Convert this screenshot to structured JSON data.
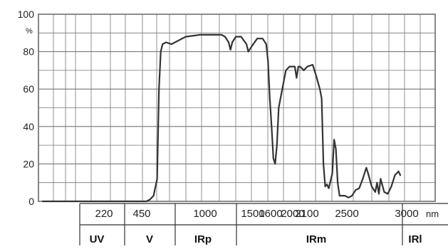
{
  "chart_data": {
    "type": "line",
    "y_unit": "%",
    "x_unit": "nm",
    "ylim": [
      0,
      100
    ],
    "y_ticks": [
      "0",
      "20",
      "40",
      "60",
      "80",
      "100"
    ],
    "x_ticks": [
      "220",
      "450",
      "1000",
      "1500",
      "1600",
      "2000",
      "2100",
      "2500",
      "3000"
    ],
    "bands": [
      "UV",
      "V",
      "IRp",
      "IRm",
      "IRl"
    ],
    "grid": true,
    "series": [
      {
        "values": [
          [
            0.0,
            0
          ],
          [
            0.1,
            0
          ],
          [
            0.2,
            0
          ],
          [
            0.29,
            0
          ],
          [
            0.3,
            1
          ],
          [
            0.31,
            3
          ],
          [
            0.32,
            12
          ],
          [
            0.325,
            60
          ],
          [
            0.33,
            80
          ],
          [
            0.335,
            84
          ],
          [
            0.345,
            85
          ],
          [
            0.36,
            84
          ],
          [
            0.38,
            86
          ],
          [
            0.4,
            88
          ],
          [
            0.44,
            89
          ],
          [
            0.48,
            89
          ],
          [
            0.5,
            89
          ],
          [
            0.51,
            88
          ],
          [
            0.52,
            85
          ],
          [
            0.525,
            81
          ],
          [
            0.53,
            85
          ],
          [
            0.54,
            88
          ],
          [
            0.555,
            88
          ],
          [
            0.57,
            84
          ],
          [
            0.575,
            80
          ],
          [
            0.585,
            83
          ],
          [
            0.6,
            87
          ],
          [
            0.615,
            87
          ],
          [
            0.625,
            84
          ],
          [
            0.63,
            75
          ],
          [
            0.635,
            55
          ],
          [
            0.64,
            40
          ],
          [
            0.645,
            23
          ],
          [
            0.65,
            20
          ],
          [
            0.655,
            30
          ],
          [
            0.66,
            50
          ],
          [
            0.665,
            55
          ],
          [
            0.67,
            60
          ],
          [
            0.68,
            70
          ],
          [
            0.69,
            72
          ],
          [
            0.705,
            72
          ],
          [
            0.71,
            66
          ],
          [
            0.715,
            72
          ],
          [
            0.72,
            72
          ],
          [
            0.73,
            70
          ],
          [
            0.74,
            72
          ],
          [
            0.755,
            73
          ],
          [
            0.765,
            67
          ],
          [
            0.775,
            60
          ],
          [
            0.78,
            55
          ],
          [
            0.785,
            20
          ],
          [
            0.79,
            8
          ],
          [
            0.795,
            9
          ],
          [
            0.8,
            7
          ],
          [
            0.81,
            15
          ],
          [
            0.815,
            33
          ],
          [
            0.82,
            28
          ],
          [
            0.825,
            10
          ],
          [
            0.83,
            3
          ],
          [
            0.845,
            3
          ],
          [
            0.855,
            2
          ],
          [
            0.865,
            3
          ],
          [
            0.875,
            6
          ],
          [
            0.885,
            7
          ],
          [
            0.895,
            12
          ],
          [
            0.905,
            18
          ],
          [
            0.91,
            15
          ],
          [
            0.92,
            8
          ],
          [
            0.93,
            5
          ],
          [
            0.935,
            10
          ],
          [
            0.94,
            4
          ],
          [
            0.945,
            12
          ],
          [
            0.955,
            5
          ],
          [
            0.965,
            4
          ],
          [
            0.975,
            8
          ],
          [
            0.985,
            14
          ],
          [
            0.995,
            16
          ],
          [
            1.0,
            14
          ]
        ]
      }
    ]
  }
}
